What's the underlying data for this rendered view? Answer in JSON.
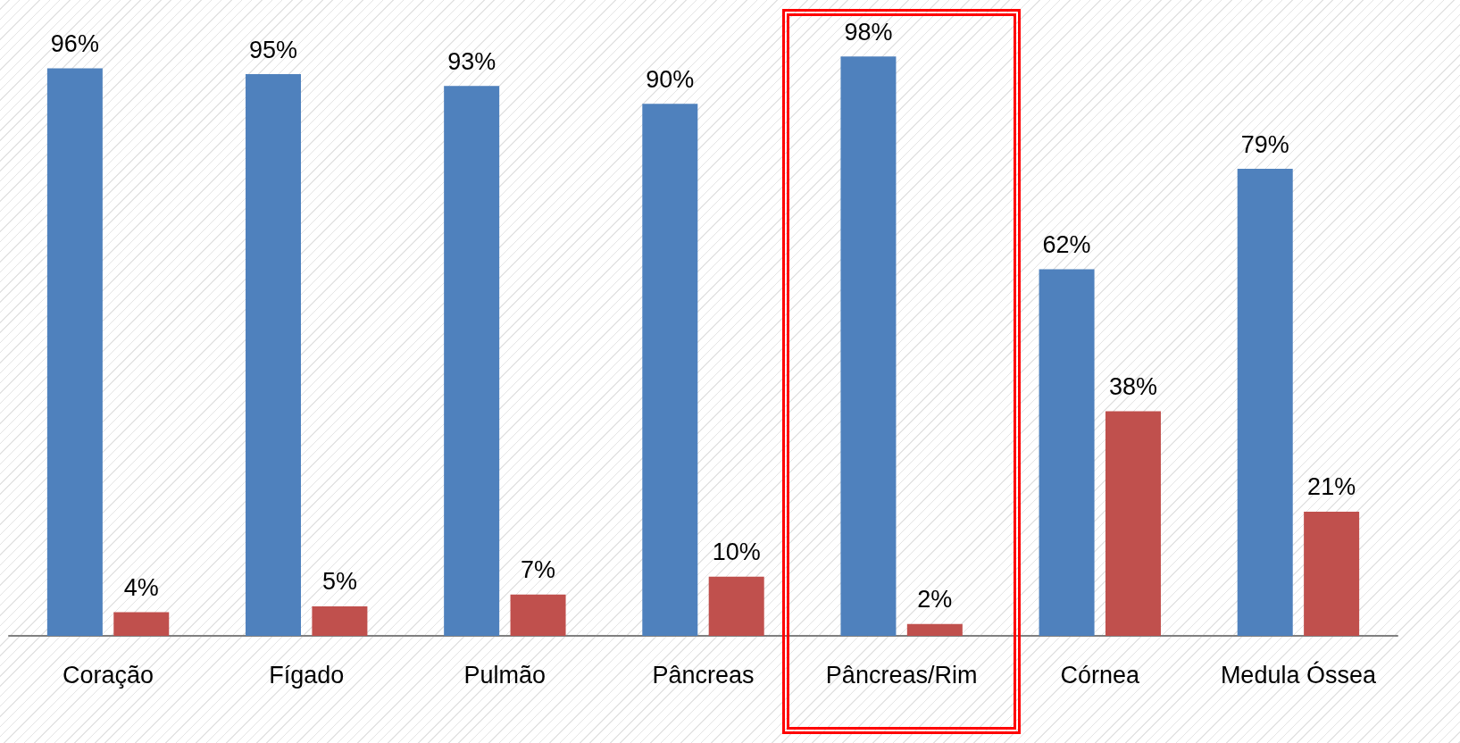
{
  "chart_data": {
    "type": "bar",
    "categories": [
      "Coração",
      "Fígado",
      "Pulmão",
      "Pâncreas",
      "Pâncreas/Rim",
      "Córnea",
      "Medula Óssea"
    ],
    "series": [
      {
        "color": "#4f81bd",
        "values": [
          96,
          95,
          93,
          90,
          98,
          62,
          79
        ],
        "value_labels": [
          "96%",
          "95%",
          "93%",
          "90%",
          "98%",
          "62%",
          "79%"
        ]
      },
      {
        "color": "#c0504d",
        "values": [
          4,
          5,
          7,
          10,
          2,
          38,
          21
        ],
        "value_labels": [
          "4%",
          "5%",
          "7%",
          "10%",
          "2%",
          "38%",
          "21%"
        ]
      }
    ],
    "grid": false
  }
}
